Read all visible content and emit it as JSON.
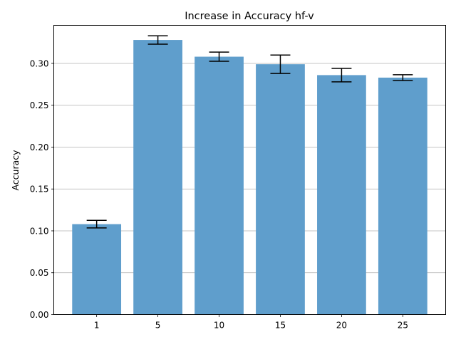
{
  "chart_data": {
    "type": "bar",
    "title": "Increase in Accuracy hf-v",
    "xlabel": "",
    "ylabel": "Accuracy",
    "categories": [
      "1",
      "5",
      "10",
      "15",
      "20",
      "25"
    ],
    "values": [
      0.108,
      0.328,
      0.308,
      0.299,
      0.286,
      0.283
    ],
    "error": [
      0.0045,
      0.005,
      0.0055,
      0.011,
      0.008,
      0.0035
    ],
    "ylim": [
      0,
      0.3455
    ],
    "yticks": [
      0.0,
      0.05,
      0.1,
      0.15,
      0.2,
      0.25,
      0.3
    ],
    "ytick_labels": [
      "0.00",
      "0.05",
      "0.10",
      "0.15",
      "0.20",
      "0.25",
      "0.30"
    ],
    "grid": "y",
    "bar_color": "#5f9ecc",
    "error_color": "#000000"
  }
}
